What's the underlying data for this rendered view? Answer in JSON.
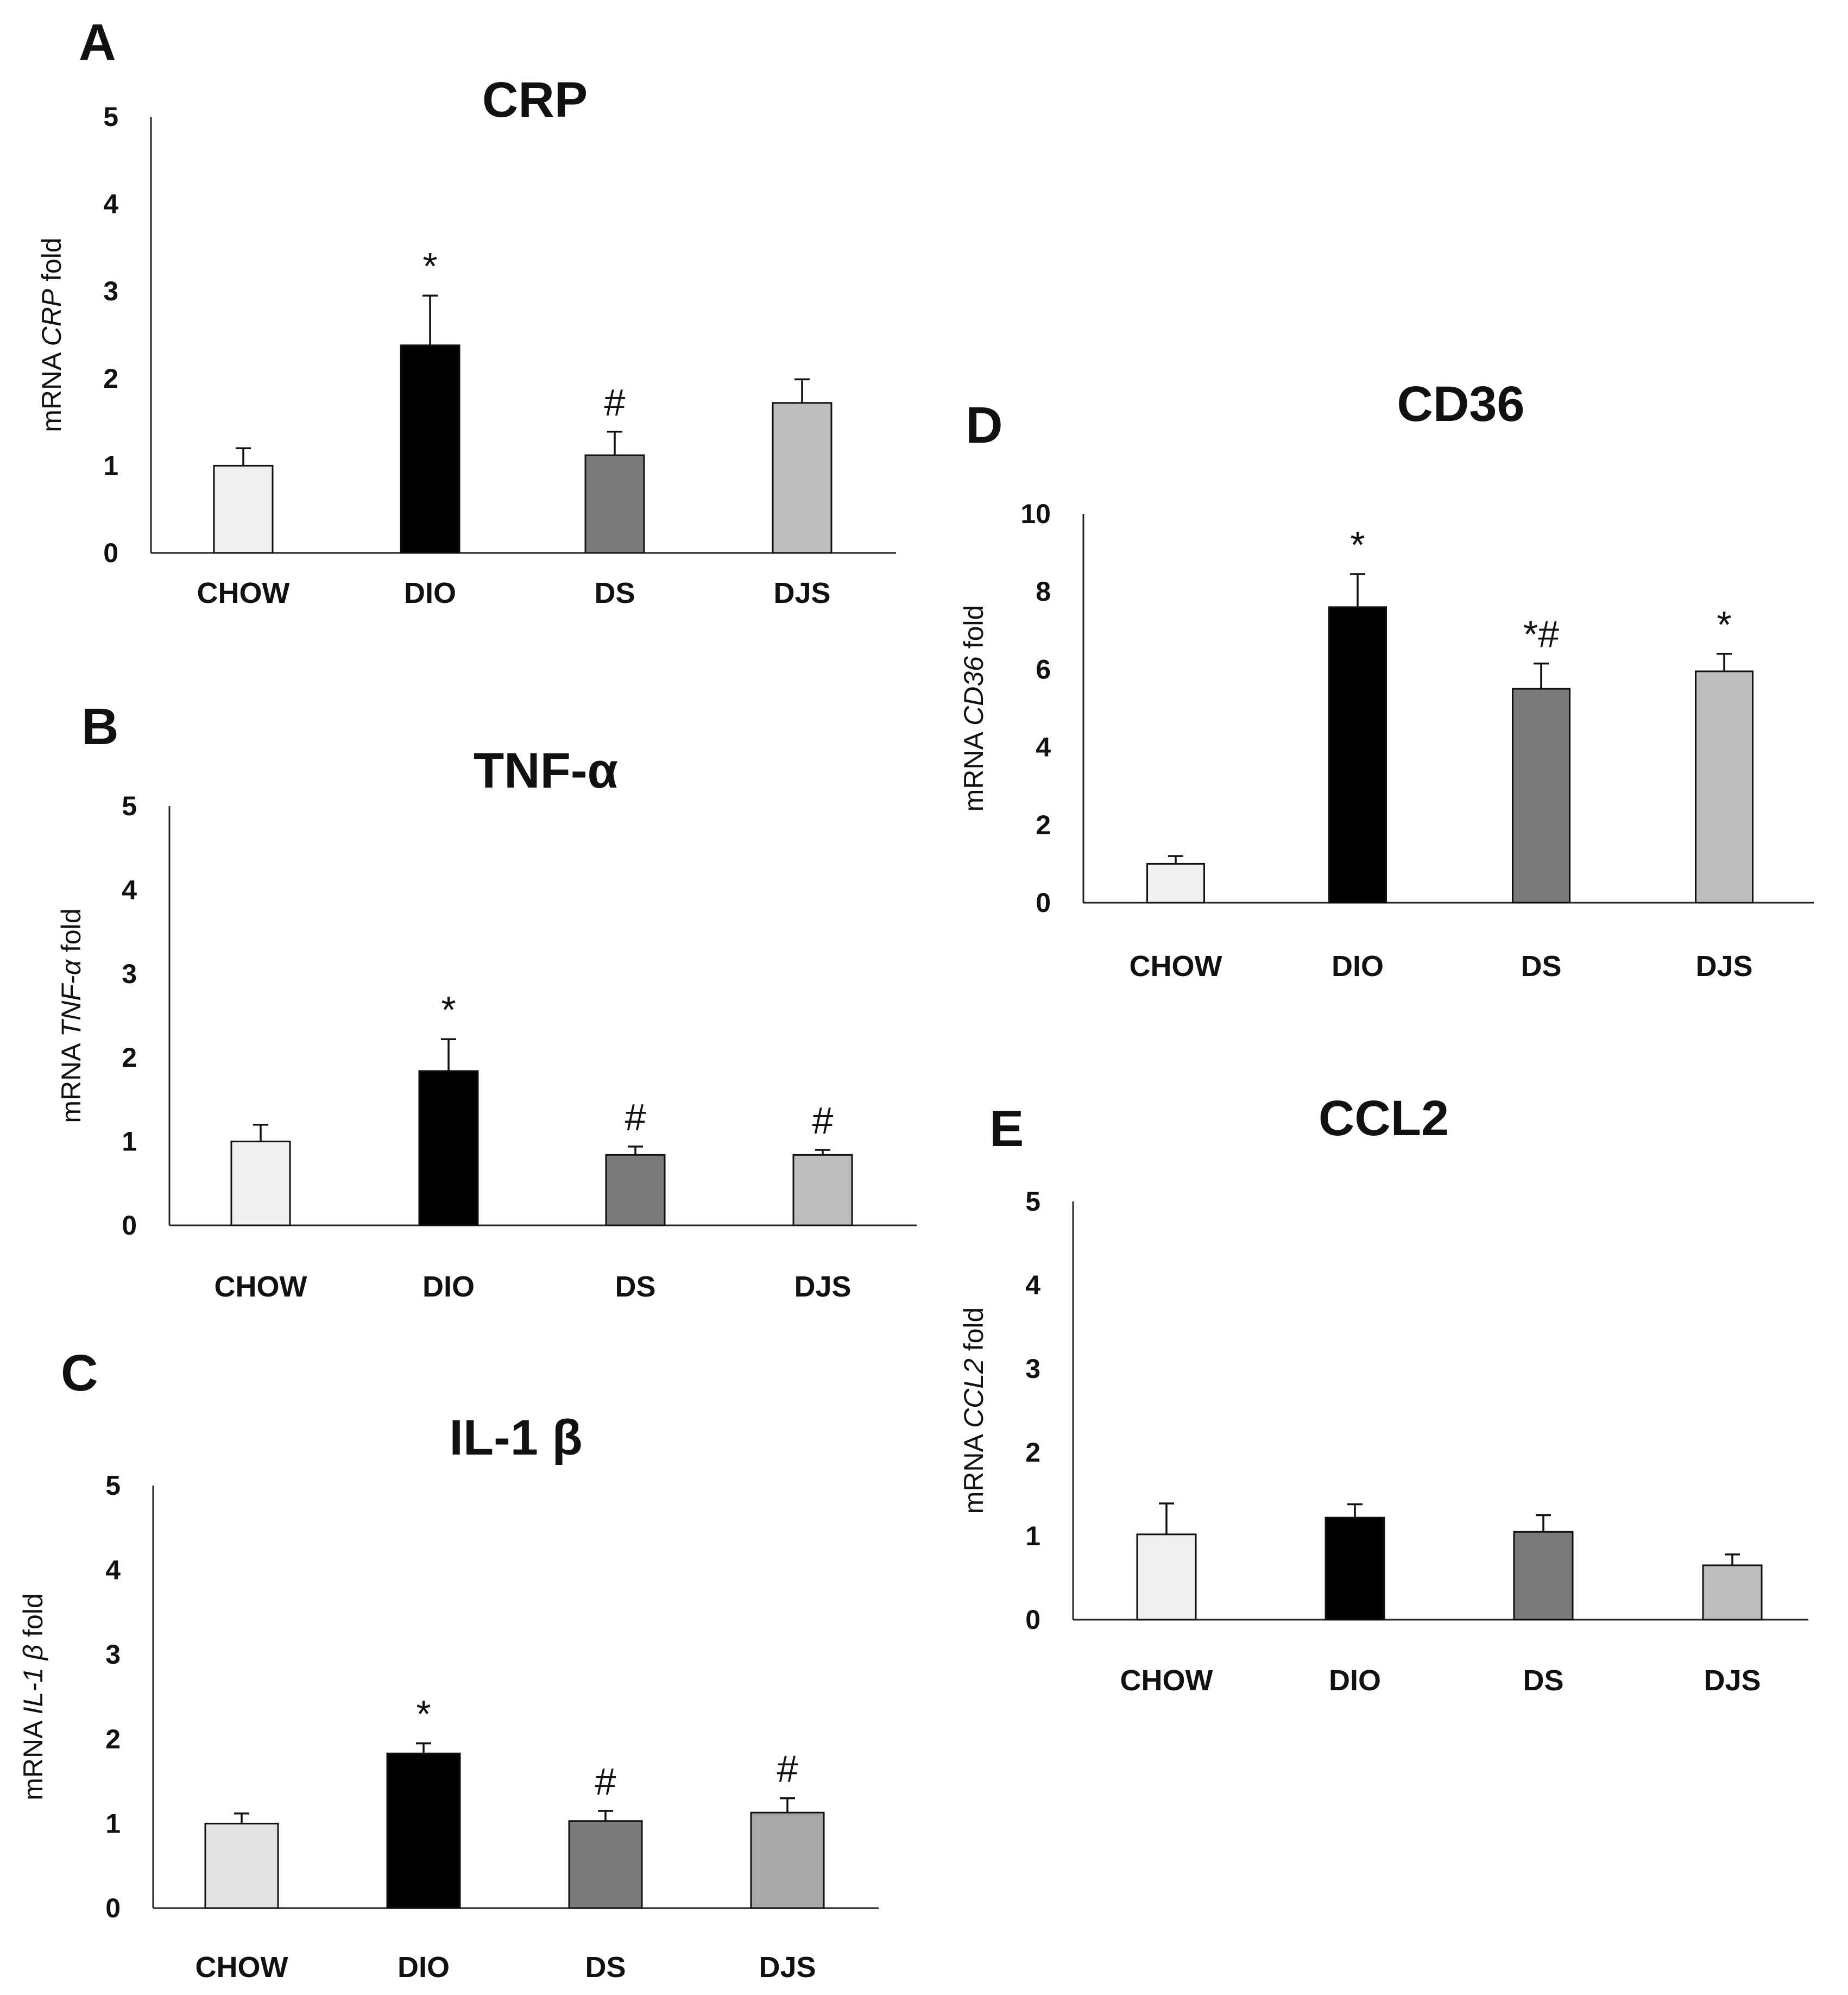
{
  "chart_data": [
    {
      "panel": "A",
      "type": "bar",
      "title": "CRP",
      "ylabel_prefix": "mRNA ",
      "ylabel_gene": "CRP",
      "ylabel_suffix": "  fold",
      "xlabel": "",
      "ylim": [
        0,
        5
      ],
      "yticks": [
        "0",
        "1",
        "2",
        "3",
        "4",
        "5"
      ],
      "categories": [
        "CHOW",
        "DIO",
        "DS",
        "DJS"
      ],
      "values": [
        1.0,
        2.38,
        1.12,
        1.72
      ],
      "errors": [
        0.2,
        0.57,
        0.27,
        0.27
      ],
      "significance": [
        "",
        "*",
        "#",
        ""
      ],
      "colors": [
        "#efefef",
        "#000000",
        "#7a7a7a",
        "#bdbdbd"
      ]
    },
    {
      "panel": "B",
      "type": "bar",
      "title": "TNF-α",
      "ylabel_prefix": "mRNA ",
      "ylabel_gene": "TNF-α",
      "ylabel_suffix": " fold",
      "xlabel": "",
      "ylim": [
        0,
        5
      ],
      "yticks": [
        "0",
        "1",
        "2",
        "3",
        "4",
        "5"
      ],
      "categories": [
        "CHOW",
        "DIO",
        "DS",
        "DJS"
      ],
      "values": [
        1.0,
        1.84,
        0.84,
        0.84
      ],
      "errors": [
        0.2,
        0.38,
        0.1,
        0.06
      ],
      "significance": [
        "",
        "*",
        "#",
        "#"
      ],
      "colors": [
        "#efefef",
        "#000000",
        "#7a7a7a",
        "#bdbdbd"
      ]
    },
    {
      "panel": "C",
      "type": "bar",
      "title": "IL-1 β",
      "ylabel_prefix": "mRNA ",
      "ylabel_gene": "IL-1 β",
      "ylabel_suffix": " fold",
      "xlabel": "",
      "ylim": [
        0,
        5
      ],
      "yticks": [
        "0",
        "1",
        "2",
        "3",
        "4",
        "5"
      ],
      "categories": [
        "CHOW",
        "DIO",
        "DS",
        "DJS"
      ],
      "values": [
        1.0,
        1.83,
        1.03,
        1.13
      ],
      "errors": [
        0.12,
        0.12,
        0.12,
        0.17
      ],
      "significance": [
        "",
        "*",
        "#",
        "#"
      ],
      "colors": [
        "#e3e3e3",
        "#000000",
        "#7a7a7a",
        "#a9a9a9"
      ]
    },
    {
      "panel": "D",
      "type": "bar",
      "title": "CD36",
      "ylabel_prefix": "mRNA ",
      "ylabel_gene": "CD36",
      "ylabel_suffix": "  fold",
      "xlabel": "",
      "ylim": [
        0,
        10
      ],
      "yticks": [
        "0",
        "2",
        "4",
        "6",
        "8",
        "10"
      ],
      "categories": [
        "CHOW",
        "DIO",
        "DS",
        "DJS"
      ],
      "values": [
        1.0,
        7.6,
        5.5,
        5.95
      ],
      "errors": [
        0.2,
        0.85,
        0.65,
        0.45
      ],
      "significance": [
        "",
        "*",
        "*#",
        "*"
      ],
      "colors": [
        "#efefef",
        "#000000",
        "#7a7a7a",
        "#bdbdbd"
      ]
    },
    {
      "panel": "E",
      "type": "bar",
      "title": "CCL2",
      "ylabel_prefix": "mRNA ",
      "ylabel_gene": "CCL2",
      "ylabel_suffix": " fold",
      "xlabel": "",
      "ylim": [
        0,
        5
      ],
      "yticks": [
        "0",
        "1",
        "2",
        "3",
        "4",
        "5"
      ],
      "categories": [
        "CHOW",
        "DIO",
        "DS",
        "DJS"
      ],
      "values": [
        1.02,
        1.22,
        1.05,
        0.65
      ],
      "errors": [
        0.37,
        0.16,
        0.2,
        0.13
      ],
      "significance": [
        "",
        "",
        "",
        ""
      ],
      "colors": [
        "#efefef",
        "#000000",
        "#7a7a7a",
        "#bdbdbd"
      ]
    }
  ]
}
